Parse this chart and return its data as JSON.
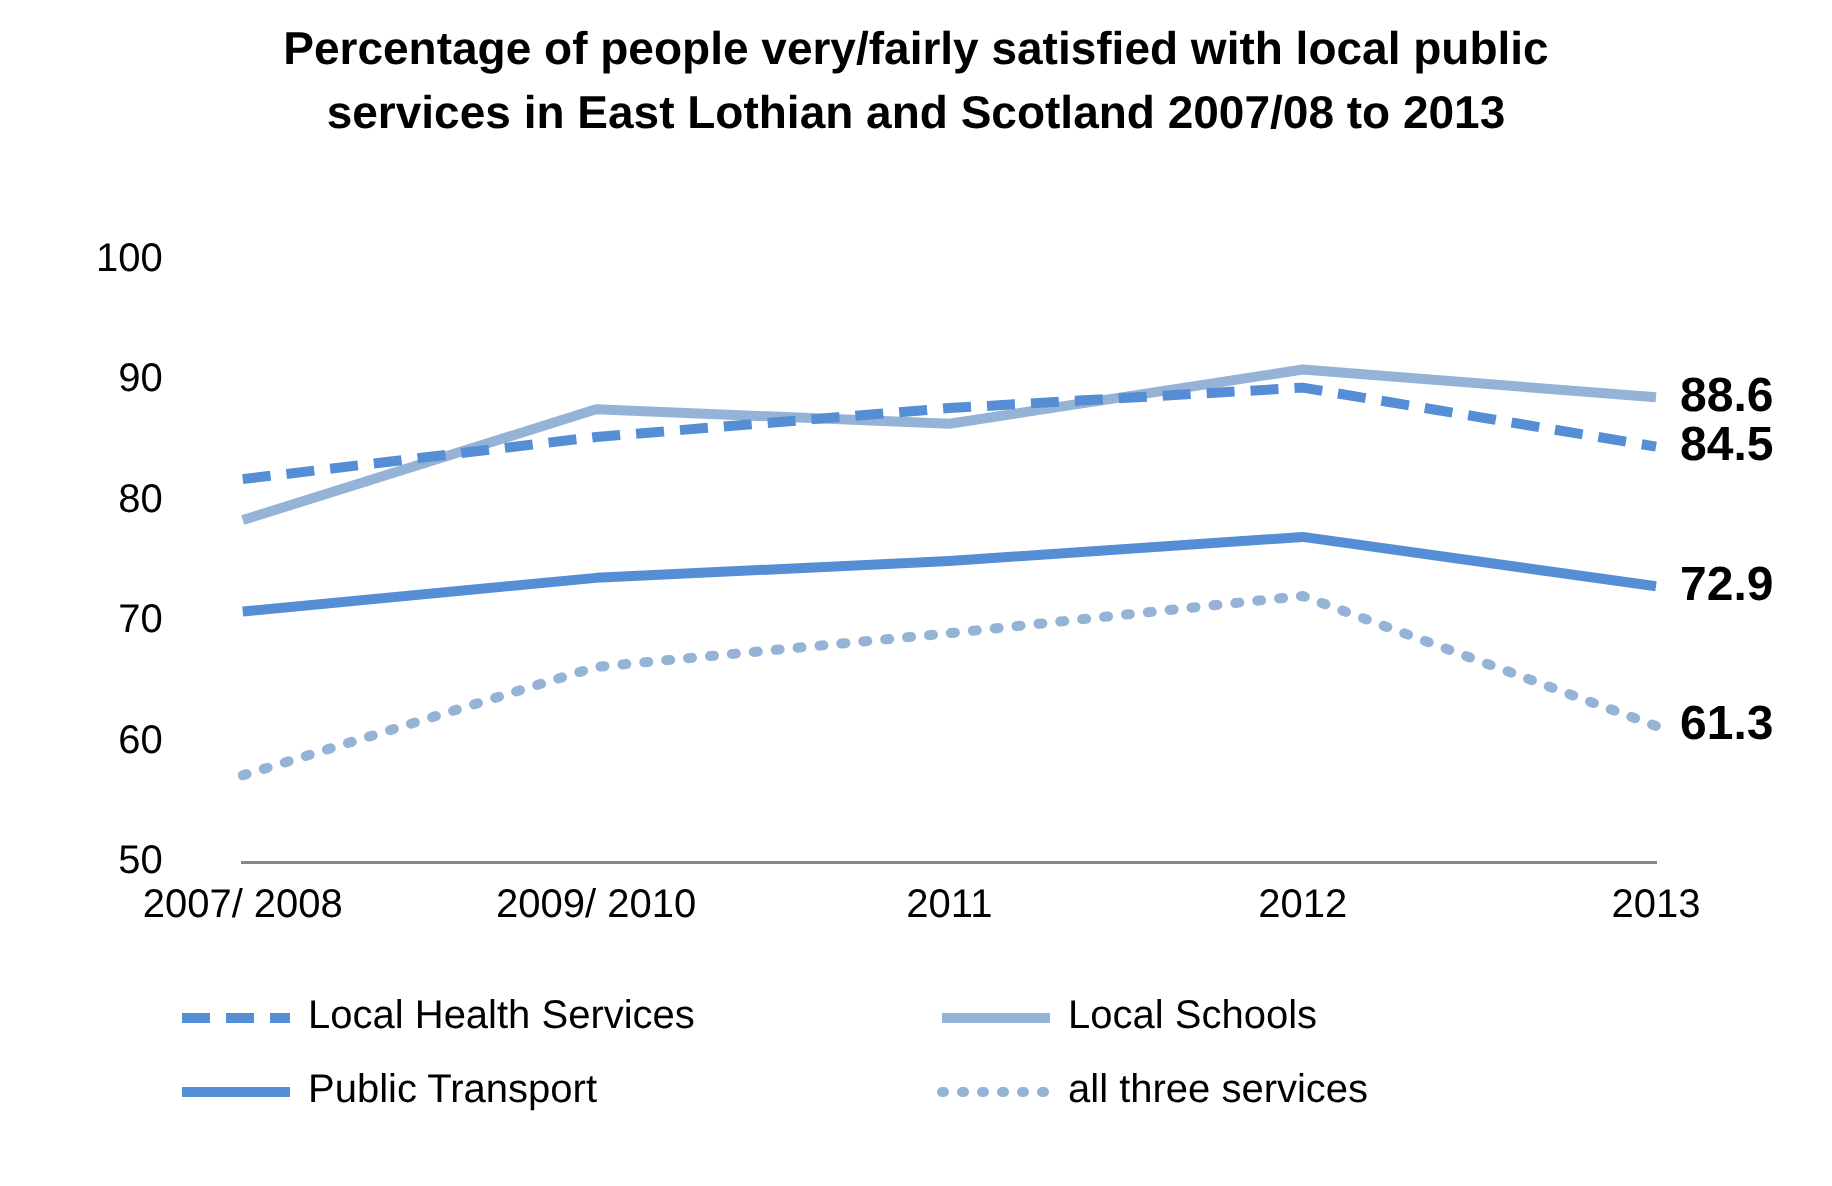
{
  "chart_data": {
    "type": "line",
    "title": "Percentage of people very/fairly satisfied with local public services in East Lothian and Scotland 2007/08 to 2013",
    "categories": [
      "2007/ 2008",
      "2009/ 2010",
      "2011",
      "2012",
      "2013"
    ],
    "series": [
      {
        "name": "Local Health Services",
        "color": "#558ed5",
        "line_style": "dashed",
        "values": [
          81.8,
          85.3,
          87.7,
          89.4,
          84.5
        ],
        "value_labels": [
          null,
          null,
          null,
          null,
          "84.5"
        ]
      },
      {
        "name": "Local Schools",
        "color": "#95b3d7",
        "line_style": "solid",
        "values": [
          78.4,
          87.6,
          86.4,
          90.9,
          88.6
        ],
        "value_labels": [
          null,
          null,
          null,
          null,
          "88.6"
        ]
      },
      {
        "name": "Public Transport",
        "color": "#558ed5",
        "line_style": "solid",
        "values": [
          70.8,
          73.6,
          75.0,
          77.0,
          72.9
        ],
        "value_labels": [
          null,
          null,
          null,
          null,
          "72.9"
        ]
      },
      {
        "name": "all three services",
        "color": "#95b3d7",
        "line_style": "dotted",
        "values": [
          57.2,
          66.2,
          69.0,
          72.1,
          61.3
        ],
        "value_labels": [
          null,
          null,
          null,
          null,
          "61.3"
        ]
      }
    ],
    "ylim": [
      50,
      100
    ],
    "yticks": [
      50,
      60,
      70,
      80,
      90,
      100
    ],
    "grid": false,
    "legend": "bottom",
    "marker": "none"
  }
}
